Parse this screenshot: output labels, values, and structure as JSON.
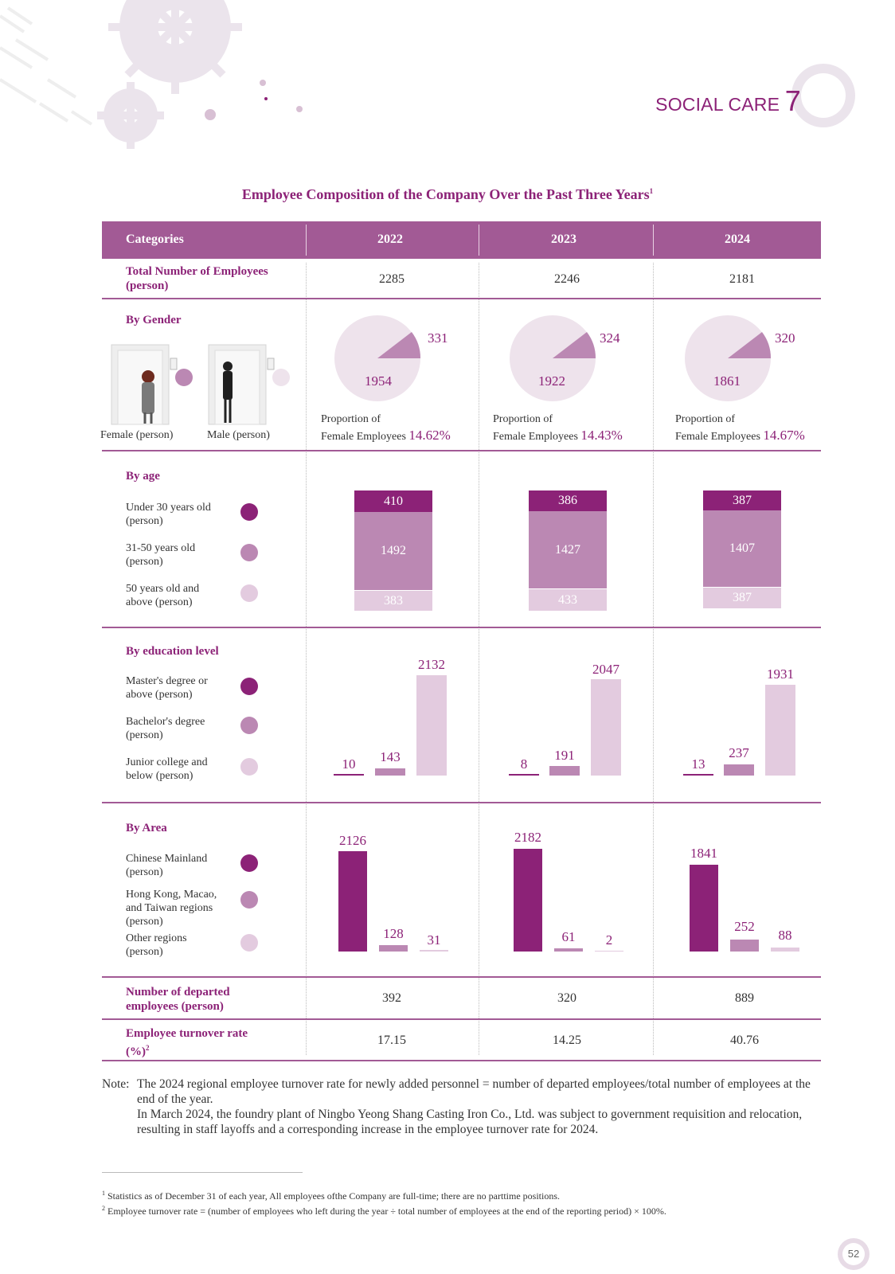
{
  "header": {
    "section_label": "SOCIAL CARE",
    "section_number": "7",
    "page_number": "52"
  },
  "title": {
    "text": "Employee Composition of the Company Over the Past Three Years",
    "sup": "1"
  },
  "table": {
    "header_col": "Categories",
    "years": [
      "2022",
      "2023",
      "2024"
    ],
    "total": {
      "label": "Total Number of Employees (person)",
      "values": [
        "2285",
        "2246",
        "2181"
      ]
    },
    "gender": {
      "label": "By Gender",
      "female_label": "Female (person)",
      "male_label": "Male (person)",
      "female": [
        "331",
        "324",
        "320"
      ],
      "male": [
        "1954",
        "1922",
        "1861"
      ],
      "proportion_line1": "Proportion of",
      "proportion_line2": "Female Employees",
      "proportion": [
        "14.62%",
        "14.43%",
        "14.67%"
      ]
    },
    "age": {
      "label": "By age",
      "categories": [
        "Under 30 years old (person)",
        "31-50 years old (person)",
        "50 years old and above (person)"
      ],
      "under30": [
        "410",
        "386",
        "387"
      ],
      "mid": [
        "1492",
        "1427",
        "1407"
      ],
      "over50": [
        "383",
        "433",
        "387"
      ]
    },
    "education": {
      "label": "By education level",
      "categories": [
        "Master's degree or above (person)",
        "Bachelor's degree (person)",
        "Junior college and below (person)"
      ],
      "master": [
        "10",
        "8",
        "13"
      ],
      "bachelor": [
        "143",
        "191",
        "237"
      ],
      "junior": [
        "2132",
        "2047",
        "1931"
      ]
    },
    "area": {
      "label": "By Area",
      "categories": [
        "Chinese Mainland (person)",
        "Hong Kong, Macao, and Taiwan regions (person)",
        "Other regions (person)"
      ],
      "mainland": [
        "2126",
        "2182",
        "1841"
      ],
      "hmt": [
        "128",
        "61",
        "252"
      ],
      "other": [
        "31",
        "2",
        "88"
      ]
    },
    "departed": {
      "label": "Number of departed employees (person)",
      "values": [
        "392",
        "320",
        "889"
      ]
    },
    "turnover": {
      "label": "Employee turnover rate (%)",
      "sup": "2",
      "values": [
        "17.15",
        "14.25",
        "40.76"
      ]
    }
  },
  "note": {
    "prefix": "Note:",
    "line1": "The 2024 regional employee turnover rate for newly added personnel = number of departed employees/total number of employees at the end of the year.",
    "line2": "In March 2024, the foundry plant of Ningbo Yeong Shang Casting Iron Co., Ltd. was subject to government requisition and relocation, resulting in staff layoffs and a corresponding increase in the employee turnover rate for 2024."
  },
  "footnotes": [
    {
      "num": "1",
      "text": "Statistics as of December 31 of each year, All employees ofthe Company are full-time; there are no parttime positions."
    },
    {
      "num": "2",
      "text": "Employee turnover rate = (number of employees who left during the year ÷ total number of employees at the end of the reporting period) × 100%."
    }
  ],
  "colors": {
    "dark": "#8c2277",
    "mid": "#bb88b3",
    "light": "#e3cbdf",
    "pie_bg": "#eee3ec",
    "header_bg": "#a25a95"
  }
}
